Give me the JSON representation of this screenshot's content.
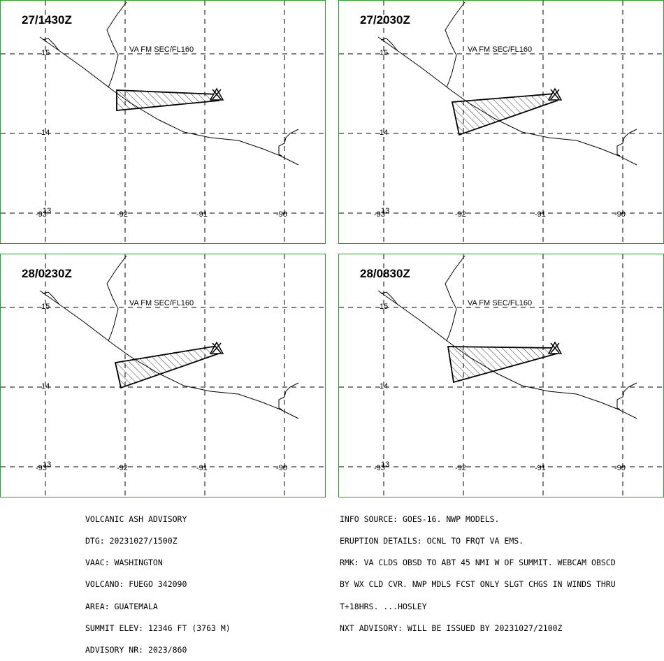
{
  "product_label": "VA FM SEC/FL160",
  "lat_labels": [
    "15",
    "14"
  ],
  "lon_labels": [
    "-93",
    "-92",
    "-91",
    "-90"
  ],
  "corner_label": "13",
  "panels": [
    {
      "time": "27/1430Z"
    },
    {
      "time": "27/2030Z"
    },
    {
      "time": "28/0230Z"
    },
    {
      "time": "28/0830Z"
    }
  ],
  "advisory_left": [
    "VOLCANIC ASH ADVISORY",
    "DTG: 20231027/1500Z",
    "VAAC: WASHINGTON",
    "VOLCANO: FUEGO 342090",
    "AREA: GUATEMALA",
    "SUMMIT ELEV: 12346 FT (3763 M)",
    "ADVISORY NR: 2023/860"
  ],
  "advisory_right": [
    "INFO SOURCE: GOES-16. NWP MODELS.",
    "ERUPTION DETAILS: OCNL TO FRQT VA EMS.",
    "RMK: VA CLDS OBSD TO ABT 45 NMI W OF SUMMIT. WEBCAM OBSCD",
    "BY WX CLD CVR. NWP MDLS FCST ONLY SLGT CHGS IN WINDS THRU",
    "T+18HRS. ...HOSLEY",
    "NXT ADVISORY: WILL BE ISSUED BY 20231027/2100Z"
  ],
  "colors": {
    "frame": "#2e9a2e",
    "ink": "#000000"
  }
}
